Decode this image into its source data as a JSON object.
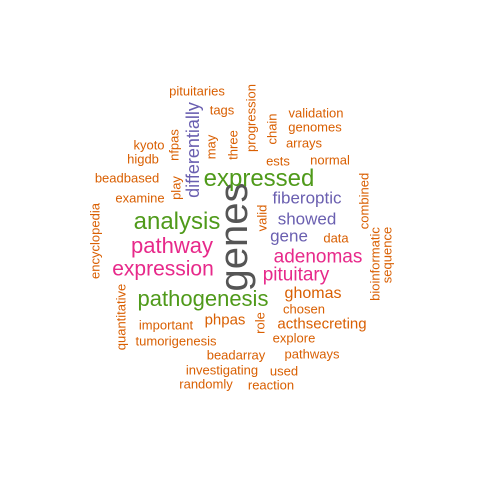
{
  "wordcloud": {
    "colors": {
      "orange": "#d95f02",
      "green": "#4f9a1a",
      "pink": "#e7298a",
      "purple": "#6a5fb0",
      "gray": "#555555"
    },
    "words": [
      {
        "key": "genes",
        "text": "genes",
        "color": "gray",
        "rotated": true
      },
      {
        "key": "expressed",
        "text": "expressed",
        "color": "green",
        "rotated": false
      },
      {
        "key": "analysis",
        "text": "analysis",
        "color": "green",
        "rotated": false
      },
      {
        "key": "pathogenesis",
        "text": "pathogenesis",
        "color": "green",
        "rotated": false
      },
      {
        "key": "pathway",
        "text": "pathway",
        "color": "pink",
        "rotated": false
      },
      {
        "key": "expression",
        "text": "expression",
        "color": "pink",
        "rotated": false
      },
      {
        "key": "adenomas",
        "text": "adenomas",
        "color": "pink",
        "rotated": false
      },
      {
        "key": "pituitary",
        "text": "pituitary",
        "color": "pink",
        "rotated": false
      },
      {
        "key": "differentially",
        "text": "differentially",
        "color": "purple",
        "rotated": true
      },
      {
        "key": "fiberoptic",
        "text": "fiberoptic",
        "color": "purple",
        "rotated": false
      },
      {
        "key": "showed",
        "text": "showed",
        "color": "purple",
        "rotated": false
      },
      {
        "key": "gene",
        "text": "gene",
        "color": "purple",
        "rotated": false
      },
      {
        "key": "ghomas",
        "text": "ghomas",
        "color": "orange",
        "rotated": false
      },
      {
        "key": "phpas",
        "text": "phpas",
        "color": "orange",
        "rotated": false
      },
      {
        "key": "acthsecreting",
        "text": "acthsecreting",
        "color": "orange",
        "rotated": false
      },
      {
        "key": "pituitaries",
        "text": "pituitaries",
        "color": "orange",
        "rotated": false
      },
      {
        "key": "tags",
        "text": "tags",
        "color": "orange",
        "rotated": false
      },
      {
        "key": "validation",
        "text": "validation",
        "color": "orange",
        "rotated": false
      },
      {
        "key": "genomes",
        "text": "genomes",
        "color": "orange",
        "rotated": false
      },
      {
        "key": "arrays",
        "text": "arrays",
        "color": "orange",
        "rotated": false
      },
      {
        "key": "kyoto",
        "text": "kyoto",
        "color": "orange",
        "rotated": false
      },
      {
        "key": "higdb",
        "text": "higdb",
        "color": "orange",
        "rotated": false
      },
      {
        "key": "ests",
        "text": "ests",
        "color": "orange",
        "rotated": false
      },
      {
        "key": "normal",
        "text": "normal",
        "color": "orange",
        "rotated": false
      },
      {
        "key": "beadbased",
        "text": "beadbased",
        "color": "orange",
        "rotated": false
      },
      {
        "key": "examine",
        "text": "examine",
        "color": "orange",
        "rotated": false
      },
      {
        "key": "data",
        "text": "data",
        "color": "orange",
        "rotated": false
      },
      {
        "key": "chosen",
        "text": "chosen",
        "color": "orange",
        "rotated": false
      },
      {
        "key": "important",
        "text": "important",
        "color": "orange",
        "rotated": false
      },
      {
        "key": "tumorigenesis",
        "text": "tumorigenesis",
        "color": "orange",
        "rotated": false
      },
      {
        "key": "explore",
        "text": "explore",
        "color": "orange",
        "rotated": false
      },
      {
        "key": "beadarray",
        "text": "beadarray",
        "color": "orange",
        "rotated": false
      },
      {
        "key": "pathways",
        "text": "pathways",
        "color": "orange",
        "rotated": false
      },
      {
        "key": "investigating",
        "text": "investigating",
        "color": "orange",
        "rotated": false
      },
      {
        "key": "used",
        "text": "used",
        "color": "orange",
        "rotated": false
      },
      {
        "key": "randomly",
        "text": "randomly",
        "color": "orange",
        "rotated": false
      },
      {
        "key": "reaction",
        "text": "reaction",
        "color": "orange",
        "rotated": false
      },
      {
        "key": "progression",
        "text": "progression",
        "color": "orange",
        "rotated": true
      },
      {
        "key": "three",
        "text": "three",
        "color": "orange",
        "rotated": true
      },
      {
        "key": "chain",
        "text": "chain",
        "color": "orange",
        "rotated": true
      },
      {
        "key": "nfpas",
        "text": "nfpas",
        "color": "orange",
        "rotated": true
      },
      {
        "key": "may",
        "text": "may",
        "color": "orange",
        "rotated": true
      },
      {
        "key": "play",
        "text": "play",
        "color": "orange",
        "rotated": true
      },
      {
        "key": "combined",
        "text": "combined",
        "color": "orange",
        "rotated": true
      },
      {
        "key": "valid",
        "text": "valid",
        "color": "orange",
        "rotated": true
      },
      {
        "key": "encyclopedia",
        "text": "encyclopedia",
        "color": "orange",
        "rotated": true
      },
      {
        "key": "bioinformatic",
        "text": "bioinformatic",
        "color": "orange",
        "rotated": true
      },
      {
        "key": "sequence",
        "text": "sequence",
        "color": "orange",
        "rotated": true
      },
      {
        "key": "quantitative",
        "text": "quantitative",
        "color": "orange",
        "rotated": true
      },
      {
        "key": "role",
        "text": "role",
        "color": "orange",
        "rotated": true
      }
    ]
  }
}
